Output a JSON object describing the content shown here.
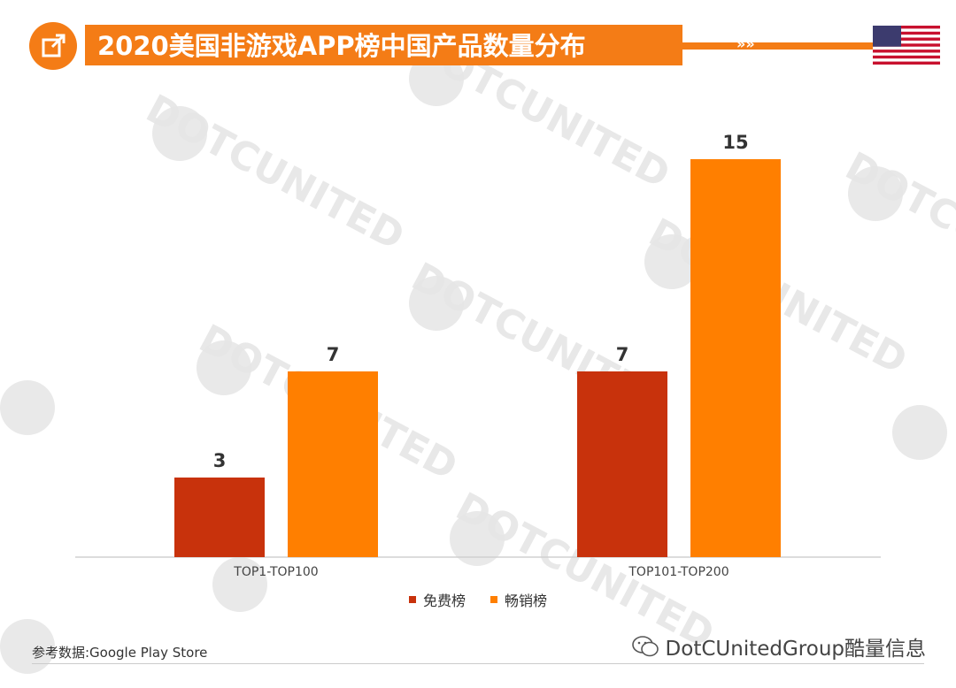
{
  "header": {
    "title": "2020美国非游戏APP榜中国产品数量分布",
    "arrows": "»»",
    "icon": "external-link-icon",
    "flag": "us-flag-icon"
  },
  "colors": {
    "accent": "#f47c16",
    "free": "#c8320c",
    "grossing": "#ff7f00"
  },
  "chart_data": {
    "type": "bar",
    "categories": [
      "TOP1-TOP100",
      "TOP101-TOP200"
    ],
    "series": [
      {
        "name": "免费榜",
        "values": [
          3,
          7
        ]
      },
      {
        "name": "畅销榜",
        "values": [
          7,
          15
        ]
      }
    ],
    "ylim": [
      0,
      15
    ],
    "grid": false,
    "legend_position": "bottom"
  },
  "source": "参考数据:Google Play Store",
  "footer": {
    "brand": "DotCUnitedGroup酷量信息"
  },
  "watermark": "DOTCUNITED"
}
